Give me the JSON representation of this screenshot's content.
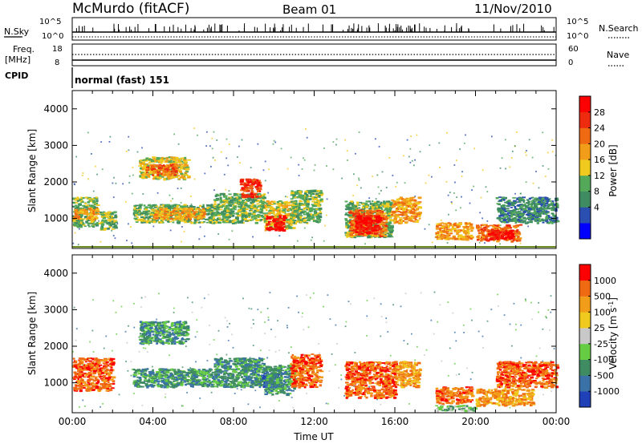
{
  "header": {
    "station": "McMurdo (fitACF)",
    "beam": "Beam 01",
    "date": "11/Nov/2010"
  },
  "status": {
    "nsky_label": "N.Sky",
    "nsearch_label": "N.Search",
    "noise_ticks": [
      "10^5",
      "10^0"
    ],
    "freq_label_1": "Freq.",
    "freq_label_2": "[MHz]",
    "freq_ticks": [
      "18",
      "8"
    ],
    "nave_label": "Nave",
    "nave_ticks": [
      "60",
      "0"
    ],
    "cpid_label": "CPID",
    "cpid_value": "normal (fast) 151"
  },
  "chart_data": [
    {
      "type": "heatmap",
      "title": "Power",
      "ylabel": "Slant Range [km]",
      "xlabel": "Time UT",
      "xlim": [
        0,
        24
      ],
      "ylim": [
        180,
        4500
      ],
      "x_ticks": [
        "00:00",
        "04:00",
        "08:00",
        "12:00",
        "16:00",
        "20:00",
        "00:00"
      ],
      "y_ticks": [
        1000,
        2000,
        3000,
        4000
      ],
      "colorbar": {
        "label": "Power [dB]",
        "ticks": [
          "28",
          "24",
          "20",
          "16",
          "12",
          "8",
          "4"
        ],
        "colors": [
          "#0000ff",
          "#2a4fb0",
          "#3f8b62",
          "#53a85a",
          "#f0c91e",
          "#f29d1a",
          "#f06a14",
          "#ee2b0e",
          "#ff0000"
        ]
      },
      "regions": [
        {
          "t": [
            0.0,
            1.2
          ],
          "r": [
            800,
            1600
          ],
          "level": 3
        },
        {
          "t": [
            0.0,
            1.2
          ],
          "r": [
            1000,
            1300
          ],
          "level": 5
        },
        {
          "t": [
            1.3,
            2.1
          ],
          "r": [
            700,
            1200
          ],
          "level": 3
        },
        {
          "t": [
            3.3,
            5.7
          ],
          "r": [
            2100,
            2700
          ],
          "level": 4
        },
        {
          "t": [
            3.6,
            5.2
          ],
          "r": [
            2200,
            2500
          ],
          "level": 6
        },
        {
          "t": [
            3.0,
            7.0
          ],
          "r": [
            900,
            1400
          ],
          "level": 3
        },
        {
          "t": [
            4.0,
            6.5
          ],
          "r": [
            1000,
            1300
          ],
          "level": 5
        },
        {
          "t": [
            7.0,
            9.5
          ],
          "r": [
            900,
            1700
          ],
          "level": 3
        },
        {
          "t": [
            8.3,
            9.3
          ],
          "r": [
            1600,
            2100
          ],
          "level": 7
        },
        {
          "t": [
            9.5,
            11.0
          ],
          "r": [
            700,
            1500
          ],
          "level": 4
        },
        {
          "t": [
            9.6,
            10.5
          ],
          "r": [
            700,
            1100
          ],
          "level": 8
        },
        {
          "t": [
            10.8,
            12.3
          ],
          "r": [
            900,
            1800
          ],
          "level": 3
        },
        {
          "t": [
            13.5,
            15.8
          ],
          "r": [
            500,
            1500
          ],
          "level": 3
        },
        {
          "t": [
            13.7,
            15.5
          ],
          "r": [
            550,
            1250
          ],
          "level": 6
        },
        {
          "t": [
            14.0,
            15.2
          ],
          "r": [
            600,
            1100
          ],
          "level": 8
        },
        {
          "t": [
            15.8,
            17.2
          ],
          "r": [
            900,
            1600
          ],
          "level": 5
        },
        {
          "t": [
            18.0,
            19.8
          ],
          "r": [
            450,
            900
          ],
          "level": 5
        },
        {
          "t": [
            20.0,
            22.2
          ],
          "r": [
            400,
            850
          ],
          "level": 6
        },
        {
          "t": [
            20.6,
            21.8
          ],
          "r": [
            450,
            700
          ],
          "level": 8
        },
        {
          "t": [
            21.0,
            24.0
          ],
          "r": [
            900,
            1600
          ],
          "level": 2
        }
      ]
    },
    {
      "type": "heatmap",
      "title": "Velocity",
      "ylabel": "Slant Range [km]",
      "xlabel": "Time UT",
      "xlim": [
        0,
        24
      ],
      "ylim": [
        180,
        4500
      ],
      "x_ticks": [
        "00:00",
        "04:00",
        "08:00",
        "12:00",
        "16:00",
        "20:00",
        "00:00"
      ],
      "y_ticks": [
        1000,
        2000,
        3000,
        4000
      ],
      "colorbar": {
        "label": "Velocity [m s^-1]",
        "ticks": [
          "1000",
          "500",
          "100",
          "25",
          "-25",
          "-100",
          "-500",
          "-1000"
        ],
        "colors": [
          "#2040b8",
          "#3a72a8",
          "#3f8b62",
          "#66cc44",
          "#c8c8c8",
          "#f0c91e",
          "#f29d1a",
          "#f06a14",
          "#ff0000"
        ]
      },
      "regions": [
        {
          "t": [
            0.0,
            2.0
          ],
          "r": [
            800,
            1700
          ],
          "level": 7
        },
        {
          "t": [
            3.3,
            5.7
          ],
          "r": [
            2100,
            2700
          ],
          "level": 2
        },
        {
          "t": [
            3.0,
            7.0
          ],
          "r": [
            900,
            1400
          ],
          "level": 2
        },
        {
          "t": [
            7.0,
            9.5
          ],
          "r": [
            900,
            1700
          ],
          "level": 2
        },
        {
          "t": [
            9.4,
            10.2
          ],
          "r": [
            900,
            1300
          ],
          "level": 0
        },
        {
          "t": [
            9.5,
            11.0
          ],
          "r": [
            700,
            1500
          ],
          "level": 2
        },
        {
          "t": [
            10.8,
            12.3
          ],
          "r": [
            900,
            1800
          ],
          "level": 7
        },
        {
          "t": [
            13.5,
            16.0
          ],
          "r": [
            600,
            1600
          ],
          "level": 7
        },
        {
          "t": [
            16.0,
            17.2
          ],
          "r": [
            900,
            1600
          ],
          "level": 6
        },
        {
          "t": [
            18.0,
            19.8
          ],
          "r": [
            450,
            900
          ],
          "level": 7
        },
        {
          "t": [
            18.0,
            20.0
          ],
          "r": [
            250,
            400
          ],
          "level": 3
        },
        {
          "t": [
            20.0,
            22.8
          ],
          "r": [
            400,
            850
          ],
          "level": 6
        },
        {
          "t": [
            21.0,
            24.0
          ],
          "r": [
            900,
            1600
          ],
          "level": 7
        }
      ]
    }
  ]
}
